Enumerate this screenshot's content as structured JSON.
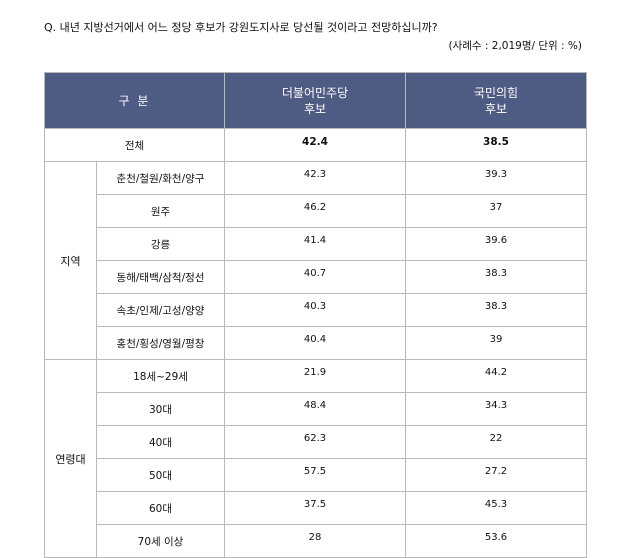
{
  "question": "Q. 내년 지방선거에서 어느 정당 후보가 강원도지사로 당선될 것이라고 전망하십니까?",
  "meta": "(사례수 : 2,019명/ 단위 : %)",
  "header": {
    "category": "구 분",
    "col1": "더불어민주당\n후보",
    "col2": "국민의힘\n후보"
  },
  "total": {
    "label": "전체",
    "v1": "42.4",
    "v2": "38.5"
  },
  "region": {
    "label": "지역",
    "rows": [
      {
        "name": "춘천/철원/화천/양구",
        "v1": "42.3",
        "v2": "39.3"
      },
      {
        "name": "원주",
        "v1": "46.2",
        "v2": "37"
      },
      {
        "name": "강릉",
        "v1": "41.4",
        "v2": "39.6"
      },
      {
        "name": "동해/태백/삼척/정선",
        "v1": "40.7",
        "v2": "38.3"
      },
      {
        "name": "속초/인제/고성/양양",
        "v1": "40.3",
        "v2": "38.3"
      },
      {
        "name": "홍천/횡성/영월/평창",
        "v1": "40.4",
        "v2": "39"
      }
    ]
  },
  "age": {
    "label": "연령대",
    "rows": [
      {
        "name": "18세~29세",
        "v1": "21.9",
        "v2": "44.2"
      },
      {
        "name": "30대",
        "v1": "48.4",
        "v2": "34.3"
      },
      {
        "name": "40대",
        "v1": "62.3",
        "v2": "22"
      },
      {
        "name": "50대",
        "v1": "57.5",
        "v2": "27.2"
      },
      {
        "name": "60대",
        "v1": "37.5",
        "v2": "45.3"
      },
      {
        "name": "70세 이상",
        "v1": "28",
        "v2": "53.6"
      }
    ]
  }
}
